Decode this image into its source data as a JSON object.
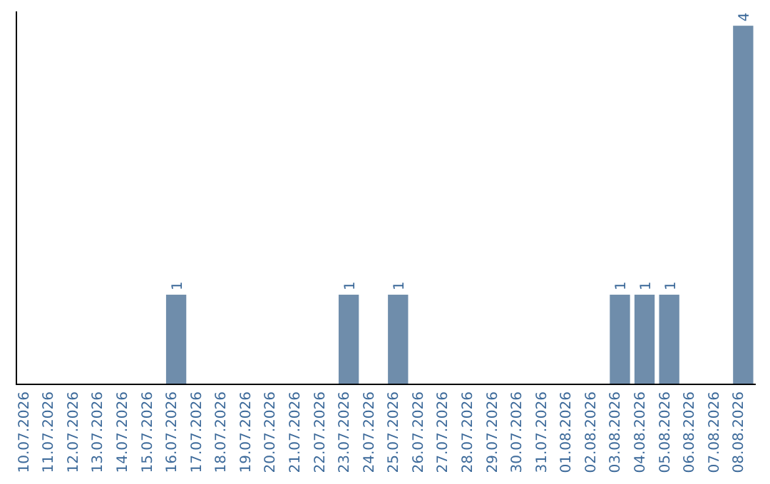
{
  "chart_data": {
    "type": "bar",
    "categories": [
      "10.07.2026",
      "11.07.2026",
      "12.07.2026",
      "13.07.2026",
      "14.07.2026",
      "15.07.2026",
      "16.07.2026",
      "17.07.2026",
      "18.07.2026",
      "19.07.2026",
      "20.07.2026",
      "21.07.2026",
      "22.07.2026",
      "23.07.2026",
      "24.07.2026",
      "25.07.2026",
      "26.07.2026",
      "27.07.2026",
      "28.07.2026",
      "29.07.2026",
      "30.07.2026",
      "31.07.2026",
      "01.08.2026",
      "02.08.2026",
      "03.08.2026",
      "04.08.2026",
      "05.08.2026",
      "06.08.2026",
      "07.08.2026",
      "08.08.2026"
    ],
    "values": [
      0,
      0,
      0,
      0,
      0,
      0,
      1,
      0,
      0,
      0,
      0,
      0,
      0,
      1,
      0,
      1,
      0,
      0,
      0,
      0,
      0,
      0,
      0,
      0,
      1,
      1,
      1,
      0,
      0,
      4
    ],
    "value_labels": [
      null,
      null,
      null,
      null,
      null,
      null,
      "1",
      null,
      null,
      null,
      null,
      null,
      null,
      "1",
      null,
      "1",
      null,
      null,
      null,
      null,
      null,
      null,
      null,
      null,
      "1",
      "1",
      "1",
      null,
      null,
      "4"
    ],
    "color": "#6f8dab"
  }
}
